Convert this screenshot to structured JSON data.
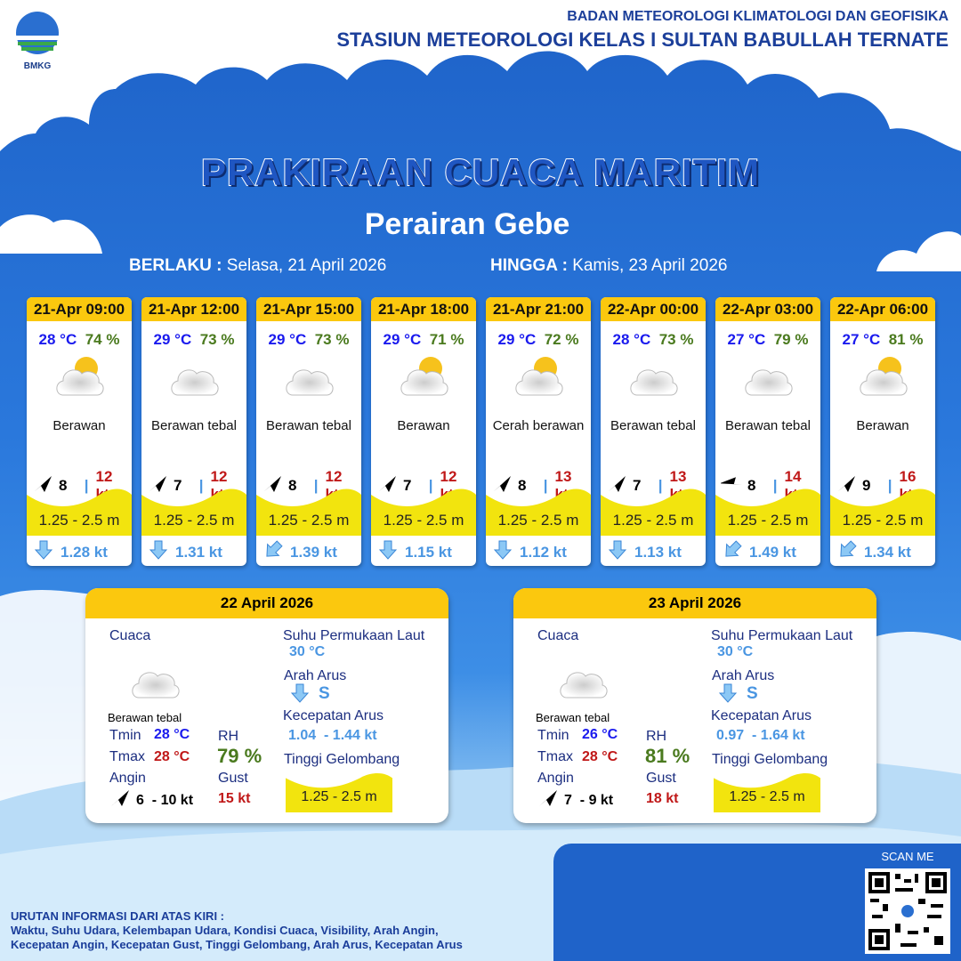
{
  "header": {
    "logo_text": "BMKG",
    "org_line1": "BADAN METEOROLOGI KLIMATOLOGI DAN GEOFISIKA",
    "org_line2": "STASIUN METEOROLOGI KELAS I SULTAN BABULLAH TERNATE"
  },
  "title": "PRAKIRAAN CUACA MARITIM",
  "subtitle": "Perairan Gebe",
  "validity": {
    "from_label": "BERLAKU :",
    "from": "Selasa, 21 April 2026",
    "to_label": "HINGGA :",
    "to": "Kamis, 23 April 2026"
  },
  "forecasts": [
    {
      "time": "21-Apr 09:00",
      "temp": "28 °C",
      "rh": "74 %",
      "icon": "partly-cloudy-sun-icon",
      "weather": "Berawan",
      "wind_dir": "NE",
      "wind": "8",
      "gust": "12 kt",
      "wave": "1.25 - 2.5 m",
      "current_dir": "S",
      "current": "1.28 kt"
    },
    {
      "time": "21-Apr 12:00",
      "temp": "29 °C",
      "rh": "73 %",
      "icon": "cloud-icon",
      "weather": "Berawan tebal",
      "wind_dir": "NE",
      "wind": "7",
      "gust": "12 kt",
      "wave": "1.25 - 2.5 m",
      "current_dir": "S",
      "current": "1.31 kt"
    },
    {
      "time": "21-Apr 15:00",
      "temp": "29 °C",
      "rh": "73 %",
      "icon": "cloud-icon",
      "weather": "Berawan tebal",
      "wind_dir": "NE",
      "wind": "8",
      "gust": "12 kt",
      "wave": "1.25 - 2.5 m",
      "current_dir": "SW",
      "current": "1.39 kt"
    },
    {
      "time": "21-Apr 18:00",
      "temp": "29 °C",
      "rh": "71 %",
      "icon": "partly-cloudy-sun-icon",
      "weather": "Berawan",
      "wind_dir": "NE",
      "wind": "7",
      "gust": "12 kt",
      "wave": "1.25 - 2.5 m",
      "current_dir": "S",
      "current": "1.15 kt"
    },
    {
      "time": "21-Apr 21:00",
      "temp": "29 °C",
      "rh": "72 %",
      "icon": "sun-behind-cloud-icon",
      "weather": "Cerah berawan",
      "wind_dir": "NE",
      "wind": "8",
      "gust": "13 kt",
      "wave": "1.25 - 2.5 m",
      "current_dir": "S",
      "current": "1.12 kt"
    },
    {
      "time": "22-Apr 00:00",
      "temp": "28 °C",
      "rh": "73 %",
      "icon": "cloud-icon",
      "weather": "Berawan tebal",
      "wind_dir": "NE",
      "wind": "7",
      "gust": "13 kt",
      "wave": "1.25 - 2.5 m",
      "current_dir": "S",
      "current": "1.13 kt"
    },
    {
      "time": "22-Apr 03:00",
      "temp": "27 °C",
      "rh": "79 %",
      "icon": "cloud-icon",
      "weather": "Berawan tebal",
      "wind_dir": "W",
      "wind": "8",
      "gust": "14 kt",
      "wave": "1.25 - 2.5 m",
      "current_dir": "SW",
      "current": "1.49 kt"
    },
    {
      "time": "22-Apr 06:00",
      "temp": "27 °C",
      "rh": "81 %",
      "icon": "partly-cloudy-sun-icon",
      "weather": "Berawan",
      "wind_dir": "NE",
      "wind": "9",
      "gust": "16 kt",
      "wave": "1.25 - 2.5 m",
      "current_dir": "SW",
      "current": "1.34 kt"
    }
  ],
  "daily": [
    {
      "date": "22 April 2026",
      "cuaca_label": "Cuaca",
      "weather": "Berawan tebal",
      "tmin_label": "Tmin",
      "tmin": "28 °C",
      "tmax_label": "Tmax",
      "tmax": "28 °C",
      "rh_label": "RH",
      "rh": "79 %",
      "angin_label": "Angin",
      "wind": "6  - 10 kt",
      "gust_label": "Gust",
      "gust": "15 kt",
      "sst_label": "Suhu Permukaan Laut",
      "sst": "30 °C",
      "arah_label": "Arah Arus",
      "arah": "S",
      "kec_label": "Kecepatan Arus",
      "kec": "1.04  - 1.44 kt",
      "tinggi_label": "Tinggi Gelombang",
      "wave": "1.25 - 2.5 m"
    },
    {
      "date": "23 April 2026",
      "cuaca_label": "Cuaca",
      "weather": "Berawan tebal",
      "tmin_label": "Tmin",
      "tmin": "26 °C",
      "tmax_label": "Tmax",
      "tmax": "28 °C",
      "rh_label": "RH",
      "rh": "81 %",
      "angin_label": "Angin",
      "wind": "7  - 9 kt",
      "gust_label": "Gust",
      "gust": "18 kt",
      "sst_label": "Suhu Permukaan Laut",
      "sst": "30 °C",
      "arah_label": "Arah Arus",
      "arah": "S",
      "kec_label": "Kecepatan Arus",
      "kec": "0.97  - 1.64 kt",
      "tinggi_label": "Tinggi Gelombang",
      "wave": "1.25 - 2.5 m"
    }
  ],
  "scan_label": "SCAN ME",
  "footer": {
    "heading": "URUTAN INFORMASI DARI ATAS KIRI :",
    "line1": "Waktu, Suhu Udara, Kelembapan Udara, Kondisi Cuaca, Visibility, Arah Angin,",
    "line2": "Kecepatan Angin, Kecepatan Gust, Tinggi Gelombang, Arah Arus, Kecepatan Arus"
  },
  "colors": {
    "header_yellow": "#fbc80e",
    "wave_yellow": "#f2e40e",
    "temp": "#1a1aee",
    "rh": "#4a7a1e",
    "gust": "#c01818",
    "current": "#4a96e2"
  }
}
